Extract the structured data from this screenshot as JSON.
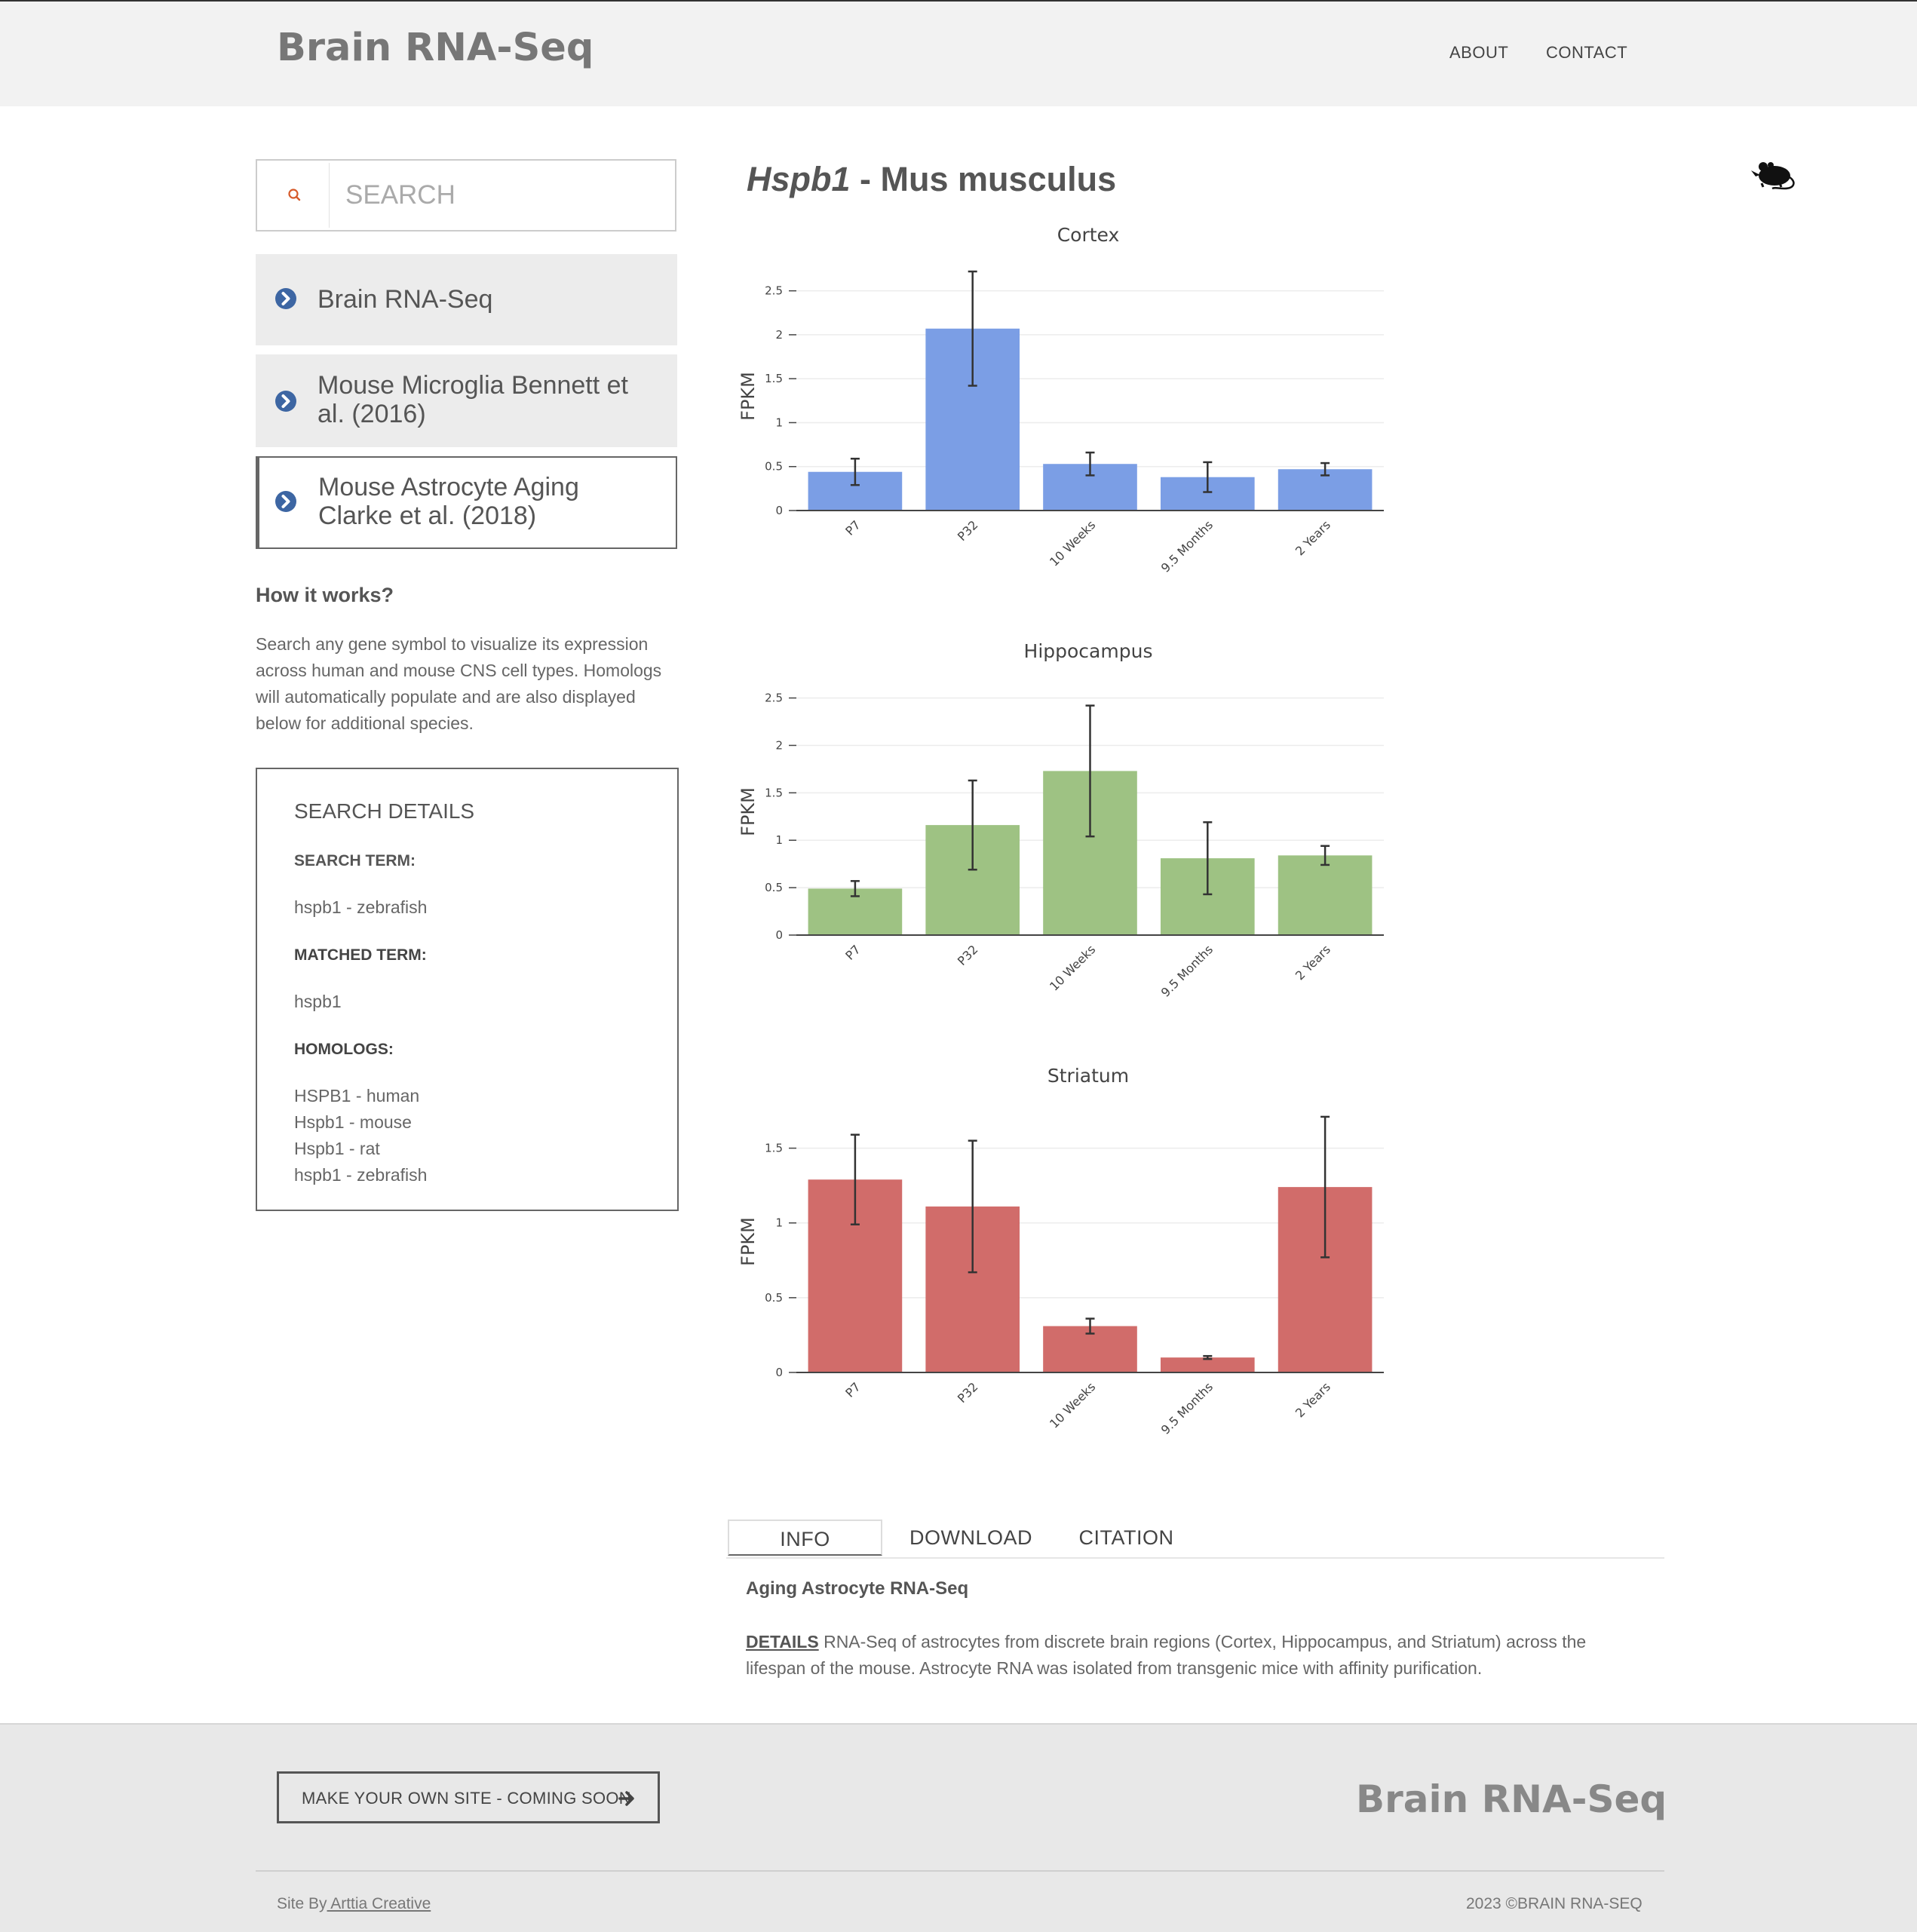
{
  "header": {
    "logo": "Brain RNA-Seq",
    "nav": [
      "ABOUT",
      "CONTACT"
    ]
  },
  "search": {
    "placeholder": "SEARCH",
    "value": ""
  },
  "datasets": [
    {
      "label_lines": [
        "Brain RNA-Seq"
      ]
    },
    {
      "label_lines": [
        "Mouse Microglia Bennett et",
        "al. (2016)"
      ]
    },
    {
      "label_lines": [
        "Mouse Astrocyte Aging",
        "Clarke et al. (2018)"
      ]
    }
  ],
  "how_it_works": {
    "title": "How it works?",
    "lines": [
      "Search any gene symbol to visualize its expression",
      "across human and mouse CNS cell types. Homologs",
      "will automatically populate and are also displayed",
      "below for additional species."
    ]
  },
  "search_details": {
    "title": "SEARCH DETAILS",
    "search_term_label": "SEARCH TERM:",
    "search_term": "hspb1 - zebrafish",
    "matched_term_label": "MATCHED TERM:",
    "matched_term": "hspb1",
    "homologs_label": "HOMOLOGS:",
    "homologs": [
      "HSPB1 - human",
      "Hspb1 - mouse",
      "Hspb1 - rat",
      "hspb1 - zebrafish"
    ]
  },
  "gene": {
    "symbol": "Hspb1",
    "species": "- Mus musculus"
  },
  "colors": {
    "cortex": "#7b9ee5",
    "hippocampus": "#9ec283",
    "striatum": "#d16c6a",
    "icon_blue": "#3d66a3",
    "search_icon": "#d65a2a"
  },
  "chart_data": [
    {
      "type": "bar",
      "title": "Cortex",
      "ylabel": "FPKM",
      "categories": [
        "P7",
        "P32",
        "10 Weeks",
        "9.5 Months",
        "2 Years"
      ],
      "values": [
        0.44,
        2.07,
        0.53,
        0.38,
        0.47
      ],
      "errors": [
        0.15,
        0.65,
        0.13,
        0.17,
        0.07
      ],
      "ylim": [
        0,
        2.6
      ],
      "yticks": [
        0,
        0.5,
        1,
        1.5,
        2,
        2.5
      ],
      "grid": true
    },
    {
      "type": "bar",
      "title": "Hippocampus",
      "ylabel": "FPKM",
      "categories": [
        "P7",
        "P32",
        "10 Weeks",
        "9.5 Months",
        "2 Years"
      ],
      "values": [
        0.49,
        1.16,
        1.73,
        0.81,
        0.84
      ],
      "errors": [
        0.08,
        0.47,
        0.69,
        0.38,
        0.1
      ],
      "ylim": [
        0,
        2.6
      ],
      "yticks": [
        0,
        0.5,
        1,
        1.5,
        2,
        2.5
      ],
      "grid": true
    },
    {
      "type": "bar",
      "title": "Striatum",
      "ylabel": "FPKM",
      "categories": [
        "P7",
        "P32",
        "10 Weeks",
        "9.5 Months",
        "2 Years"
      ],
      "values": [
        1.29,
        1.11,
        0.31,
        0.1,
        1.24
      ],
      "errors": [
        0.3,
        0.44,
        0.05,
        0.01,
        0.47
      ],
      "ylim": [
        0,
        1.75
      ],
      "yticks": [
        0,
        0.5,
        1,
        1.5
      ],
      "grid": true
    }
  ],
  "tabs": [
    "INFO",
    "DOWNLOAD",
    "CITATION"
  ],
  "info": {
    "heading": "Aging Astrocyte RNA-Seq",
    "details_label": "DETAILS",
    "text_line1": " RNA-Seq of astrocytes from discrete brain regions (Cortex, Hippocampus, and Striatum) across the",
    "text_line2": "lifespan of the mouse. Astrocyte RNA was isolated from transgenic mice with affinity purification."
  },
  "footer": {
    "make_button": "MAKE YOUR OWN SITE - COMING SOON",
    "logo": "Brain RNA-Seq",
    "site_by_prefix": "Site By",
    "site_by_link": " Arttia Creative",
    "copyright": "2023 ©BRAIN RNA-SEQ"
  }
}
